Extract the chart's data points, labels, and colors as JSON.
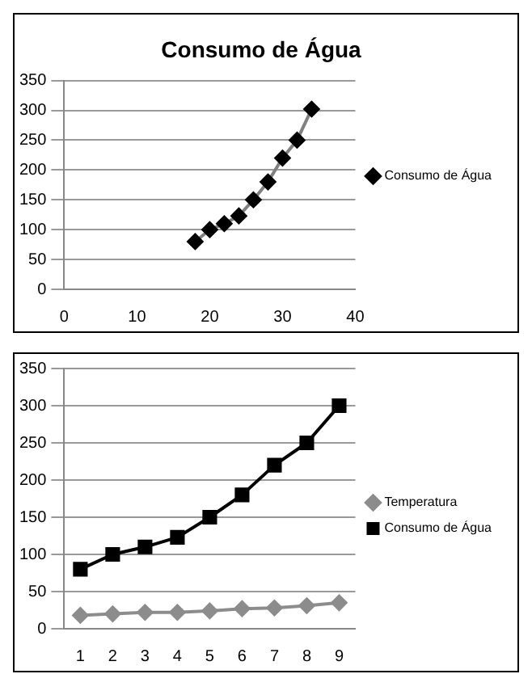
{
  "chart_data": [
    {
      "type": "line",
      "title": "Consumo de Água",
      "xlim": [
        0,
        40
      ],
      "xticks": [
        0,
        10,
        20,
        30,
        40
      ],
      "ylim": [
        0,
        350
      ],
      "yticks": [
        0,
        50,
        100,
        150,
        200,
        250,
        300,
        350
      ],
      "grid": "y",
      "legend": "right",
      "marker": "diamond",
      "series": [
        {
          "name": "Consumo de Água",
          "color": "#808080",
          "x": [
            18,
            20,
            22,
            24,
            26,
            28,
            30,
            32,
            34
          ],
          "values": [
            80,
            100,
            110,
            123,
            150,
            180,
            220,
            250,
            302
          ]
        }
      ]
    },
    {
      "type": "line",
      "categories": [
        "1",
        "2",
        "3",
        "4",
        "5",
        "6",
        "7",
        "8",
        "9"
      ],
      "ylim": [
        0,
        350
      ],
      "yticks": [
        0,
        50,
        100,
        150,
        200,
        250,
        300,
        350
      ],
      "grid": "y",
      "legend": "right",
      "series": [
        {
          "name": "Temperatura",
          "color": "#8c8c8c",
          "marker": "diamond",
          "values": [
            18,
            20,
            22,
            22,
            24,
            27,
            28,
            31,
            35
          ]
        },
        {
          "name": "Consumo de Água",
          "color": "#000000",
          "marker": "square",
          "values": [
            80,
            100,
            110,
            123,
            150,
            180,
            220,
            250,
            300
          ]
        }
      ]
    }
  ]
}
